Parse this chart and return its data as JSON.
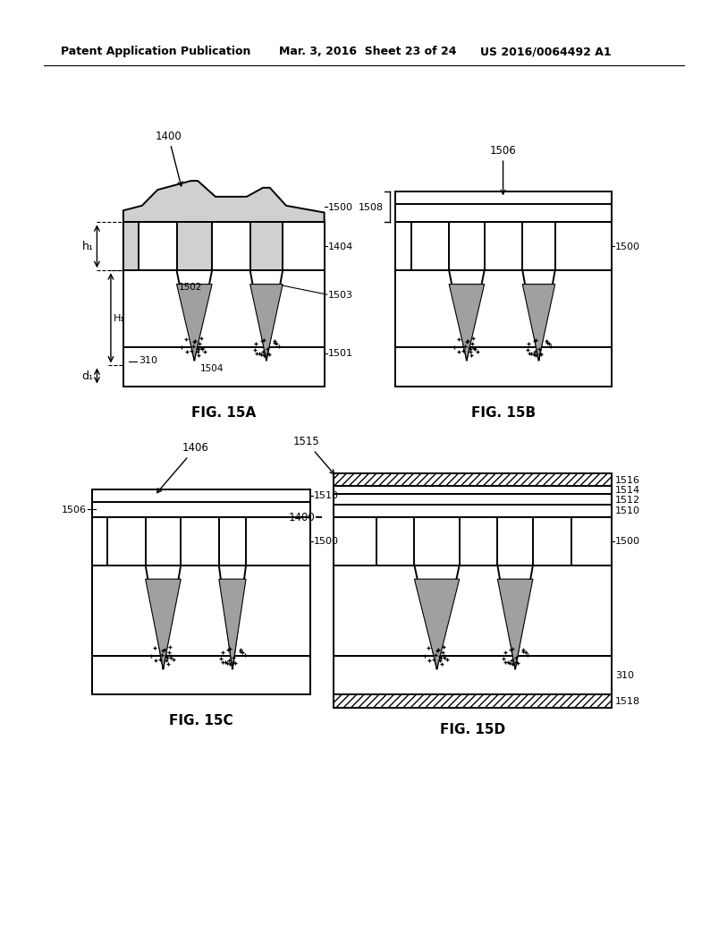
{
  "header_left": "Patent Application Publication",
  "header_mid": "Mar. 3, 2016  Sheet 23 of 24",
  "header_right": "US 2016/0064492 A1",
  "bg_color": "#ffffff",
  "line_color": "#000000",
  "fig_labels": [
    "FIG. 15A",
    "FIG. 15B",
    "FIG. 15C",
    "FIG. 15D"
  ]
}
